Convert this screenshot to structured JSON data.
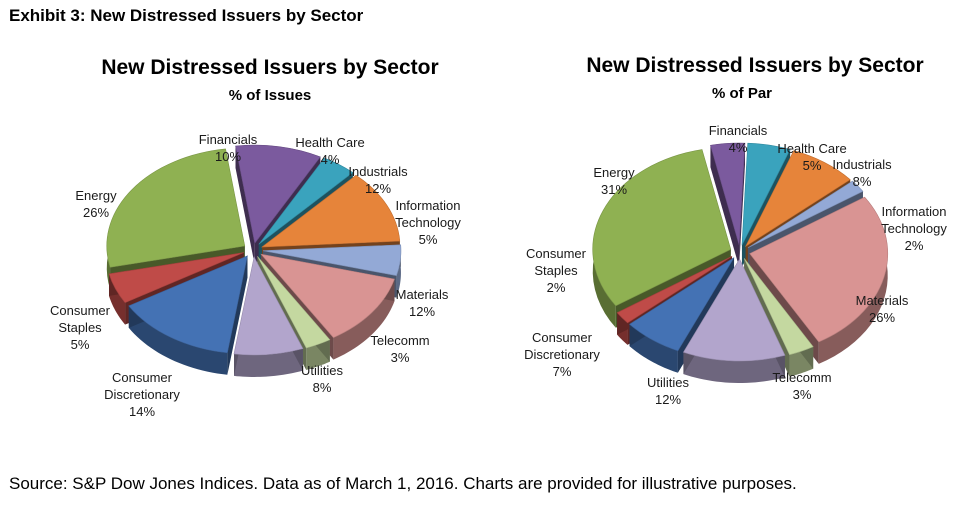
{
  "exhibit_title": "Exhibit 3: New Distressed Issuers by Sector",
  "source": "Source: S&P Dow Jones Indices.  Data as of March 1, 2016.  Charts are provided for illustrative purposes.",
  "colors": {
    "Financials": "#7b5a9e",
    "Health Care": "#3aa3bd",
    "Industrials": "#e6843a",
    "Information Technology": "#93a9d6",
    "Materials": "#d99493",
    "Telecomm": "#c4d8a0",
    "Utilities": "#b2a5cc",
    "Consumer Discretionary": "#4472b4",
    "Consumer Staples": "#bf4b48",
    "Energy": "#8fb152"
  },
  "chart_data": [
    {
      "type": "pie",
      "title": "New Distressed Issuers by Sector",
      "subtitle": "% of Issues",
      "categories": [
        "Financials",
        "Health Care",
        "Industrials",
        "Information Technology",
        "Materials",
        "Telecomm",
        "Utilities",
        "Consumer Discretionary",
        "Consumer Staples",
        "Energy"
      ],
      "label_lines": [
        [
          "Financials"
        ],
        [
          "Health Care"
        ],
        [
          "Industrials"
        ],
        [
          "Information",
          "Technology"
        ],
        [
          "Materials"
        ],
        [
          "Telecomm"
        ],
        [
          "Utilities"
        ],
        [
          "Consumer",
          "Discretionary"
        ],
        [
          "Consumer",
          "Staples"
        ],
        [
          "Energy"
        ]
      ],
      "values": [
        10,
        4,
        12,
        5,
        12,
        3,
        8,
        14,
        5,
        26
      ],
      "value_labels": [
        "10%",
        "4%",
        "12%",
        "5%",
        "12%",
        "3%",
        "8%",
        "14%",
        "5%",
        "26%"
      ]
    },
    {
      "type": "pie",
      "title": "New Distressed Issuers by Sector",
      "subtitle": "% of Par",
      "categories": [
        "Financials",
        "Health Care",
        "Industrials",
        "Information Technology",
        "Materials",
        "Telecomm",
        "Utilities",
        "Consumer Discretionary",
        "Consumer Staples",
        "Energy"
      ],
      "label_lines": [
        [
          "Financials"
        ],
        [
          "Health Care"
        ],
        [
          "Industrials"
        ],
        [
          "Information",
          "Technology"
        ],
        [
          "Materials"
        ],
        [
          "Telecomm"
        ],
        [
          "Utilities"
        ],
        [
          "Consumer",
          "Discretionary"
        ],
        [
          "Consumer",
          "Staples"
        ],
        [
          "Energy"
        ]
      ],
      "values": [
        4,
        5,
        8,
        2,
        26,
        3,
        12,
        7,
        2,
        31
      ],
      "value_labels": [
        "4%",
        "5%",
        "8%",
        "2%",
        "26%",
        "3%",
        "12%",
        "7%",
        "2%",
        "31%"
      ]
    }
  ]
}
